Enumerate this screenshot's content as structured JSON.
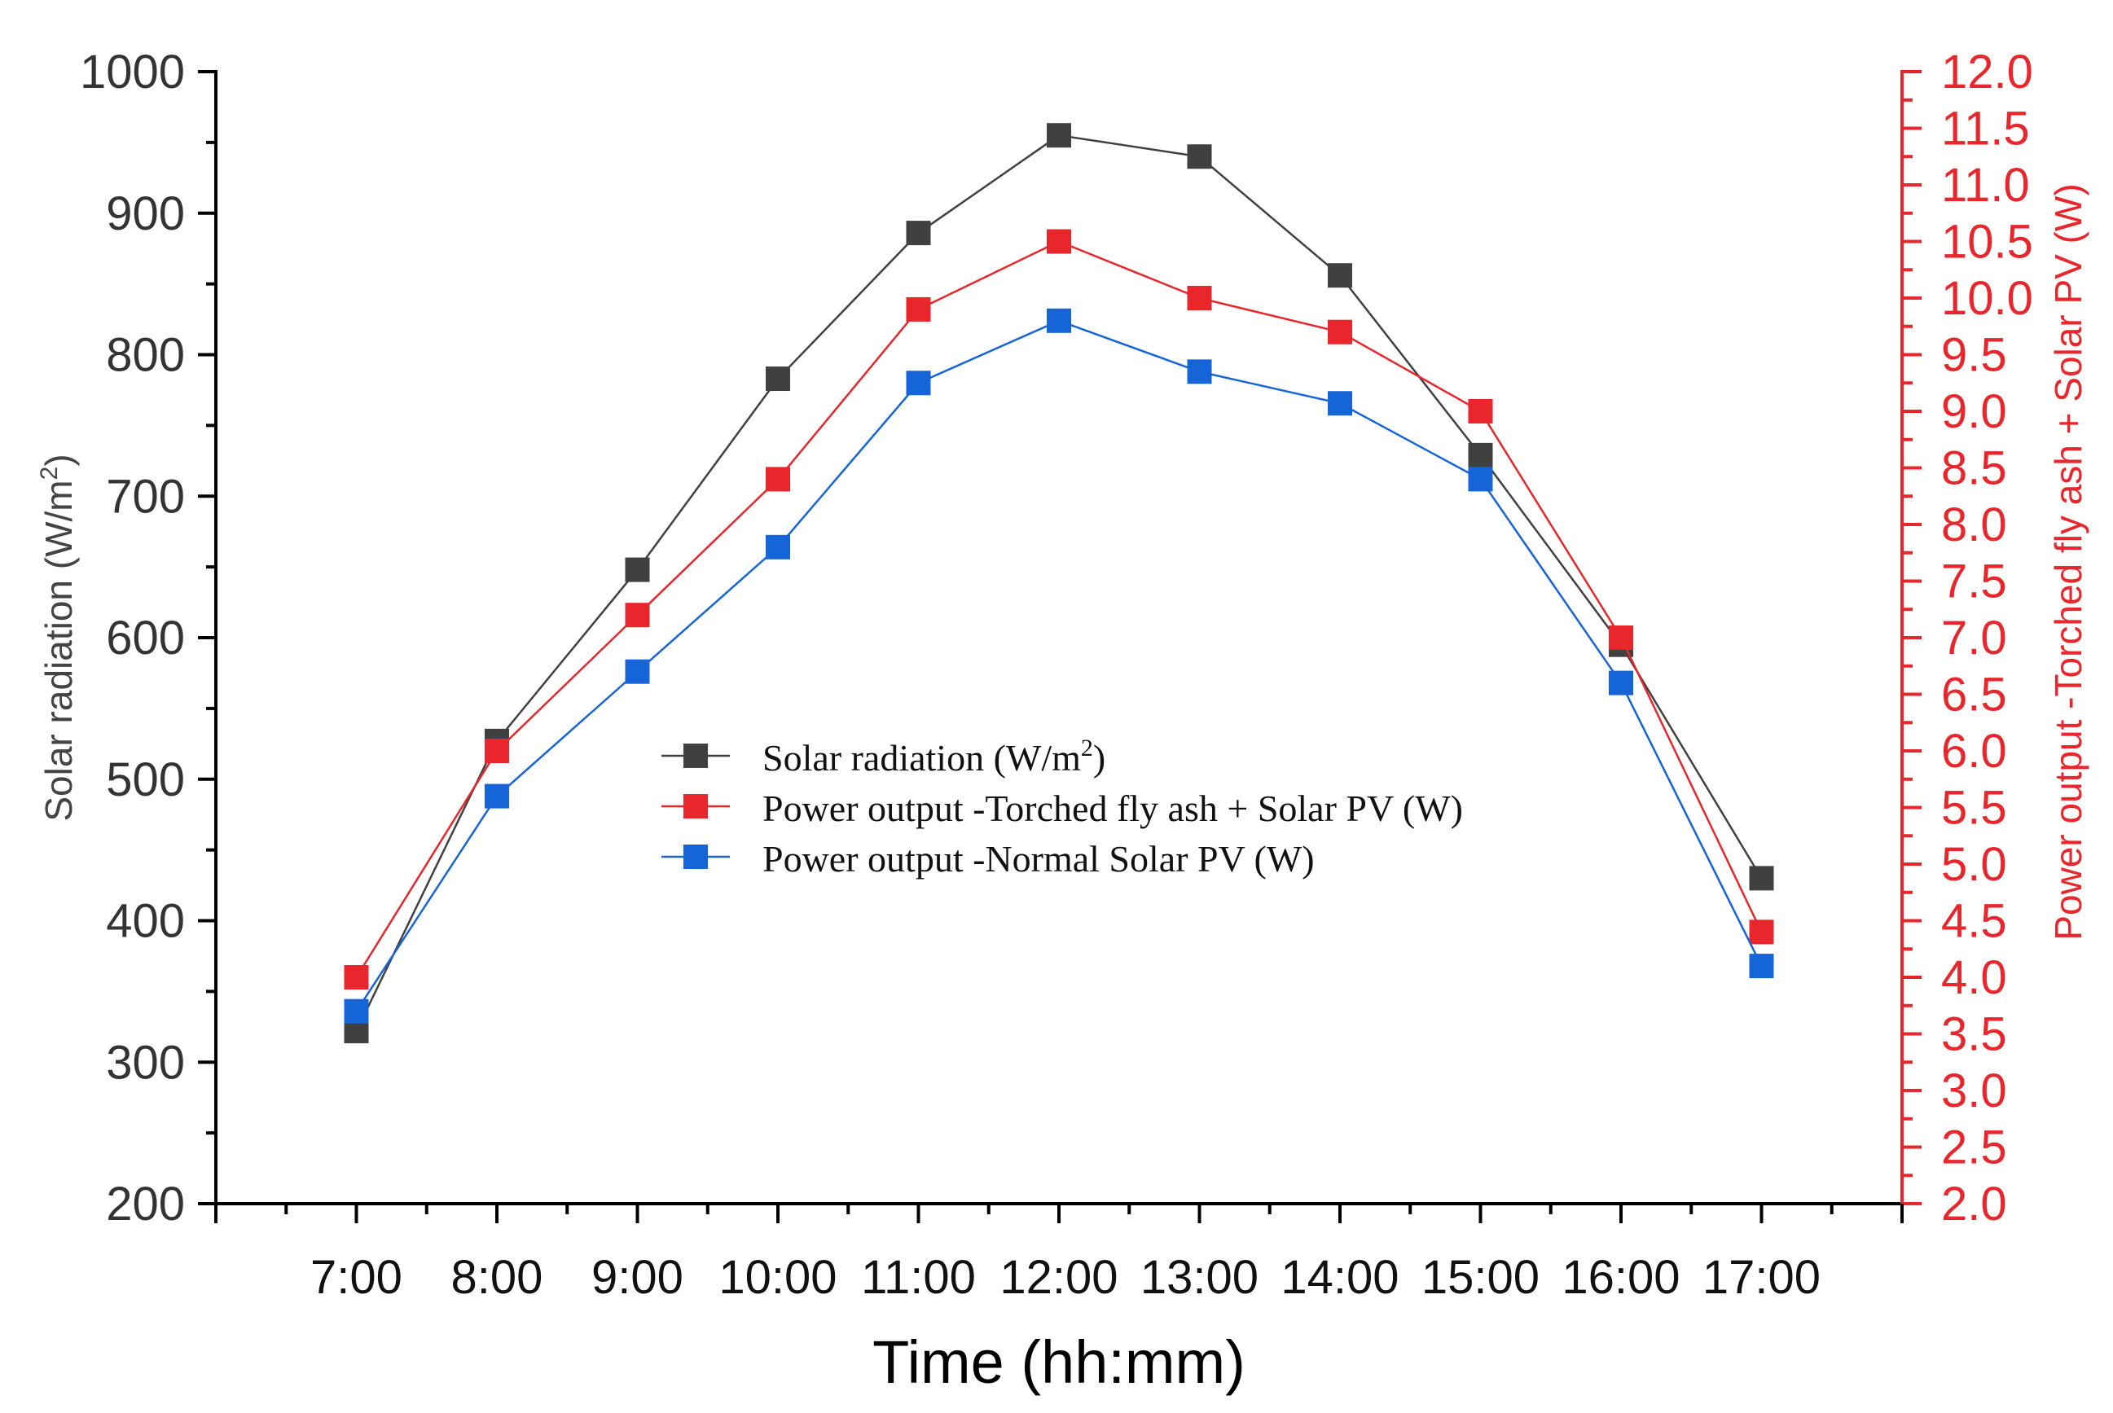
{
  "chart_data": {
    "type": "line",
    "title": "",
    "xlabel": "Time (hh:mm)",
    "ylabel_left": {
      "text": "Solar radiation (W/m",
      "sup": "2",
      "close": ")"
    },
    "ylabel_right": "Power output -Torched fly ash + Solar PV (W)",
    "categories": [
      "7:00",
      "8:00",
      "9:00",
      "10:00",
      "11:00",
      "12:00",
      "13:00",
      "14:00",
      "15:00",
      "16:00",
      "17:00"
    ],
    "ylim_left": [
      200,
      1000
    ],
    "yticks_left": [
      200,
      300,
      400,
      500,
      600,
      700,
      800,
      900,
      1000
    ],
    "ylim_right": [
      2.0,
      12.0
    ],
    "yticks_right": [
      "2.0",
      "2.5",
      "3.0",
      "3.5",
      "4.0",
      "4.5",
      "5.0",
      "5.5",
      "6.0",
      "6.5",
      "7.0",
      "7.5",
      "8.0",
      "8.5",
      "9.0",
      "9.5",
      "10.0",
      "10.5",
      "11.0",
      "11.5",
      "12.0"
    ],
    "colors": {
      "axis": "#000000",
      "right_axis": "#e8262b",
      "left_label": "#444444"
    },
    "legend_position": "center-left",
    "series": [
      {
        "name": "Solar radiation (W/m",
        "sup": "2",
        "close": ")",
        "axis": "left",
        "color": "#404040",
        "values": [
          322,
          527,
          648,
          783,
          886,
          955,
          940,
          856,
          729,
          595,
          430
        ]
      },
      {
        "name": "Power output -Torched fly ash + Solar PV (W)",
        "axis": "right",
        "color": "#e8262b",
        "values": [
          4.0,
          6.0,
          7.2,
          8.4,
          9.9,
          10.5,
          10.0,
          9.7,
          9.0,
          7.0,
          4.4
        ]
      },
      {
        "name": "Power output -Normal Solar PV (W)",
        "axis": "right",
        "color": "#1565d8",
        "values": [
          3.7,
          5.6,
          6.7,
          7.8,
          9.25,
          9.8,
          9.35,
          9.07,
          8.4,
          6.6,
          4.1
        ]
      }
    ]
  }
}
